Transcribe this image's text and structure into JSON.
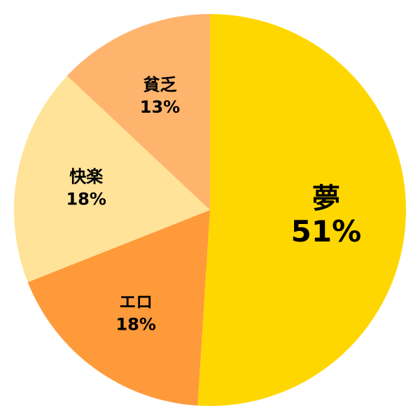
{
  "chart_data": {
    "type": "pie",
    "title": "",
    "start": "top",
    "direction": "clockwise",
    "legend": "none",
    "slices": [
      {
        "label": "夢",
        "value": 51,
        "value_label": "51%",
        "color": "#FFD700"
      },
      {
        "label": "エロ",
        "value": 18,
        "value_label": "18%",
        "color": "#FF9A3A"
      },
      {
        "label": "快楽",
        "value": 18,
        "value_label": "18%",
        "color": "#FFE398"
      },
      {
        "label": "貧乏",
        "value": 13,
        "value_label": "13%",
        "color": "#FFB46E"
      }
    ]
  }
}
